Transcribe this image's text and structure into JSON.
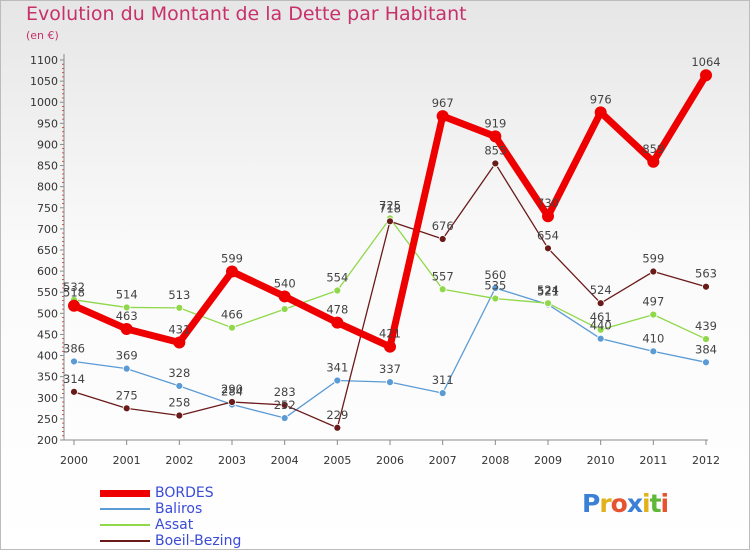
{
  "title": "Evolution du Montant de la Dette par Habitant",
  "subtitle": "(en €)",
  "logo": {
    "text": "Proxiti",
    "letter_colors": [
      "#3b7fd6",
      "#e2b21c",
      "#e5532f",
      "#3b7fd6",
      "#e2b21c",
      "#60b83a",
      "#e5532f"
    ]
  },
  "chart_data": {
    "type": "line",
    "title": "Evolution du Montant de la Dette par Habitant",
    "subtitle": "(en €)",
    "x": [
      2000,
      2001,
      2002,
      2003,
      2004,
      2005,
      2006,
      2007,
      2008,
      2009,
      2010,
      2011,
      2012
    ],
    "ylim": [
      200,
      1100
    ],
    "yticks": [
      200,
      250,
      300,
      350,
      400,
      450,
      500,
      550,
      600,
      650,
      700,
      750,
      800,
      850,
      900,
      950,
      1000,
      1050,
      1100
    ],
    "grid": false,
    "legend_position": "bottom-left",
    "series": [
      {
        "name": "BORDES",
        "color": "#ee0000",
        "width": 7,
        "marker_radius": 6,
        "values": [
          518,
          463,
          431,
          599,
          540,
          478,
          421,
          967,
          919,
          730,
          976,
          859,
          1064
        ],
        "labels": [
          "518",
          "463",
          "431",
          "599",
          "540",
          "478",
          "421",
          "967",
          "919",
          "730",
          "976",
          "859",
          "1064"
        ]
      },
      {
        "name": "Baliros",
        "color": "#5b9bd5",
        "width": 1.3,
        "marker_radius": 3.5,
        "values": [
          386,
          369,
          328,
          284,
          252,
          341,
          337,
          311,
          560,
          521,
          440,
          410,
          384
        ],
        "labels": [
          "386",
          "369",
          "328",
          "284",
          "252",
          "341",
          "337",
          "311",
          "560",
          "521",
          "440",
          "410",
          "384"
        ]
      },
      {
        "name": "Assat",
        "color": "#8fd84a",
        "width": 1.3,
        "marker_radius": 3.5,
        "values": [
          532,
          514,
          513,
          466,
          510,
          554,
          725,
          557,
          535,
          524,
          461,
          497,
          439
        ],
        "labels": [
          "532",
          "514",
          "513",
          "466",
          "",
          "554",
          "725",
          "557",
          "535",
          "524",
          "461",
          "497",
          "439"
        ]
      },
      {
        "name": "Boeil-Bezing",
        "color": "#6b1a1a",
        "width": 1.3,
        "marker_radius": 3.5,
        "values": [
          314,
          275,
          258,
          290,
          283,
          229,
          718,
          676,
          855,
          654,
          524,
          599,
          563
        ],
        "labels": [
          "314",
          "275",
          "258",
          "290",
          "283",
          "229",
          "718",
          "676",
          "855",
          "654",
          "524",
          "599",
          "563"
        ]
      }
    ]
  }
}
